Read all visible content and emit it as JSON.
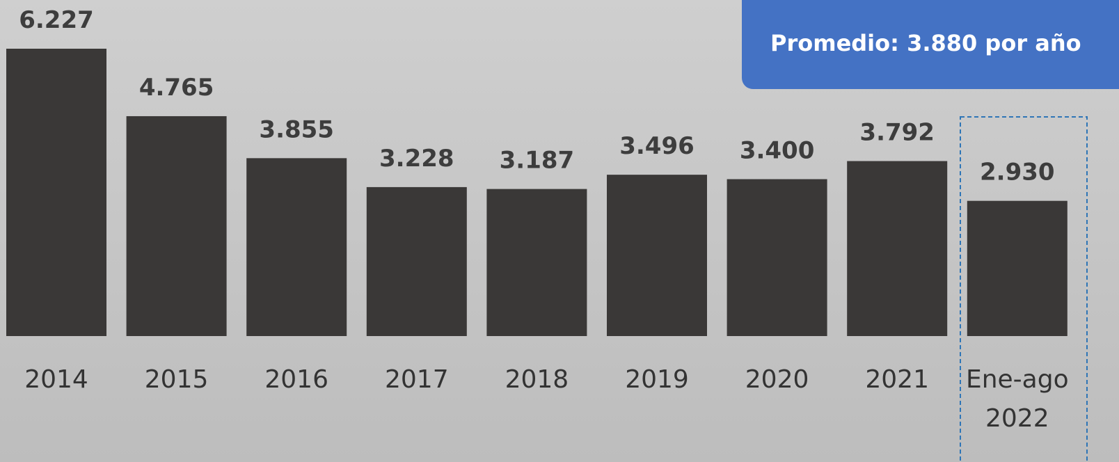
{
  "chart_data": {
    "type": "bar",
    "categories": [
      "2014",
      "2015",
      "2016",
      "2017",
      "2018",
      "2019",
      "2020",
      "2021",
      "Ene-ago 2022"
    ],
    "values": [
      6227,
      4765,
      3855,
      3228,
      3187,
      3496,
      3400,
      3792,
      2930
    ],
    "value_labels": [
      "6.227",
      "4.765",
      "3.855",
      "3.228",
      "3.187",
      "3.496",
      "3.400",
      "3.792",
      "2.930"
    ],
    "color": "#3a3837",
    "annotation": "Promedio: 3.880 por año"
  }
}
